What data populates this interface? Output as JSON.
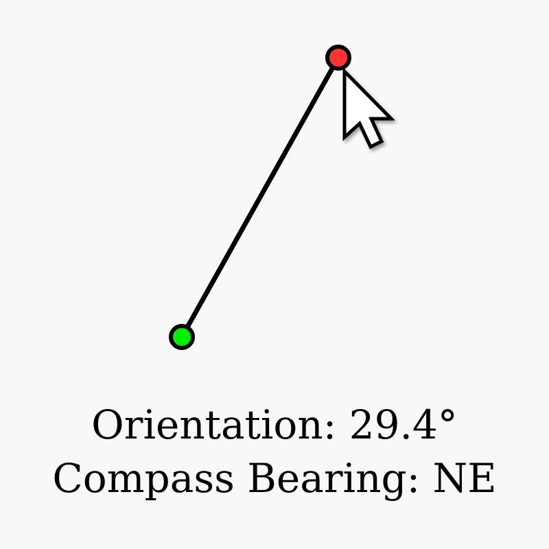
{
  "readout": {
    "orientation_label": "Orientation: 29.4°",
    "bearing_label": "Compass Bearing: NE"
  },
  "vector": {
    "orientation_degrees": 29.4,
    "bearing": "NE"
  },
  "colors": {
    "background": "#f8f8f8",
    "line": "#000000",
    "start_handle": "#00ee00",
    "end_handle": "#ff3333"
  },
  "icons": {
    "start": "start-point-icon",
    "end": "end-point-icon",
    "cursor": "mouse-pointer-icon"
  }
}
